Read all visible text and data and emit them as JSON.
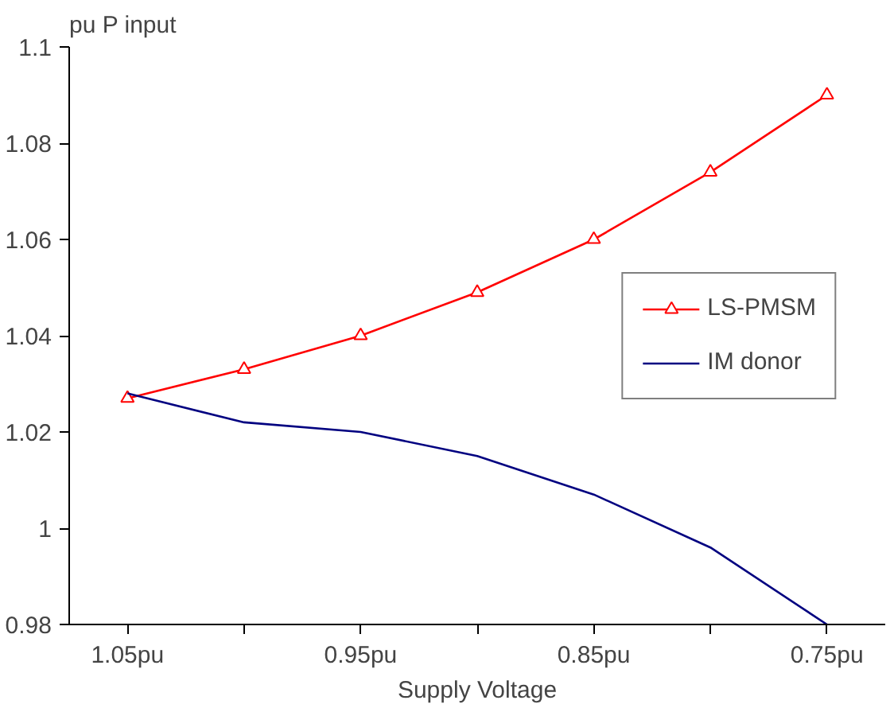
{
  "chart_data": {
    "type": "line",
    "ylabel": "pu P input",
    "xlabel": "Supply Voltage",
    "x": [
      1.05,
      1.0,
      0.95,
      0.9,
      0.85,
      0.8,
      0.75
    ],
    "xlim": [
      1.075,
      0.725
    ],
    "xticks": [
      {
        "value": 1.05,
        "label": "1.05pu"
      },
      {
        "value": 1.0,
        "label": null
      },
      {
        "value": 0.95,
        "label": "0.95pu"
      },
      {
        "value": 0.9,
        "label": null
      },
      {
        "value": 0.85,
        "label": "0.85pu"
      },
      {
        "value": 0.8,
        "label": null
      },
      {
        "value": 0.75,
        "label": "0.75pu"
      }
    ],
    "ylim": [
      0.98,
      1.1
    ],
    "yticks": [
      0.98,
      1,
      1.02,
      1.04,
      1.06,
      1.08,
      1.1
    ],
    "grid": false,
    "legend": "right",
    "series": [
      {
        "name": "LS-PMSM",
        "color": "#ff0000",
        "marker": "triangle",
        "values": [
          1.027,
          1.033,
          1.04,
          1.049,
          1.06,
          1.074,
          1.09
        ]
      },
      {
        "name": "IM donor",
        "color": "#000080",
        "marker": "none",
        "values": [
          1.028,
          1.022,
          1.02,
          1.015,
          1.007,
          0.996,
          0.98
        ]
      }
    ]
  }
}
